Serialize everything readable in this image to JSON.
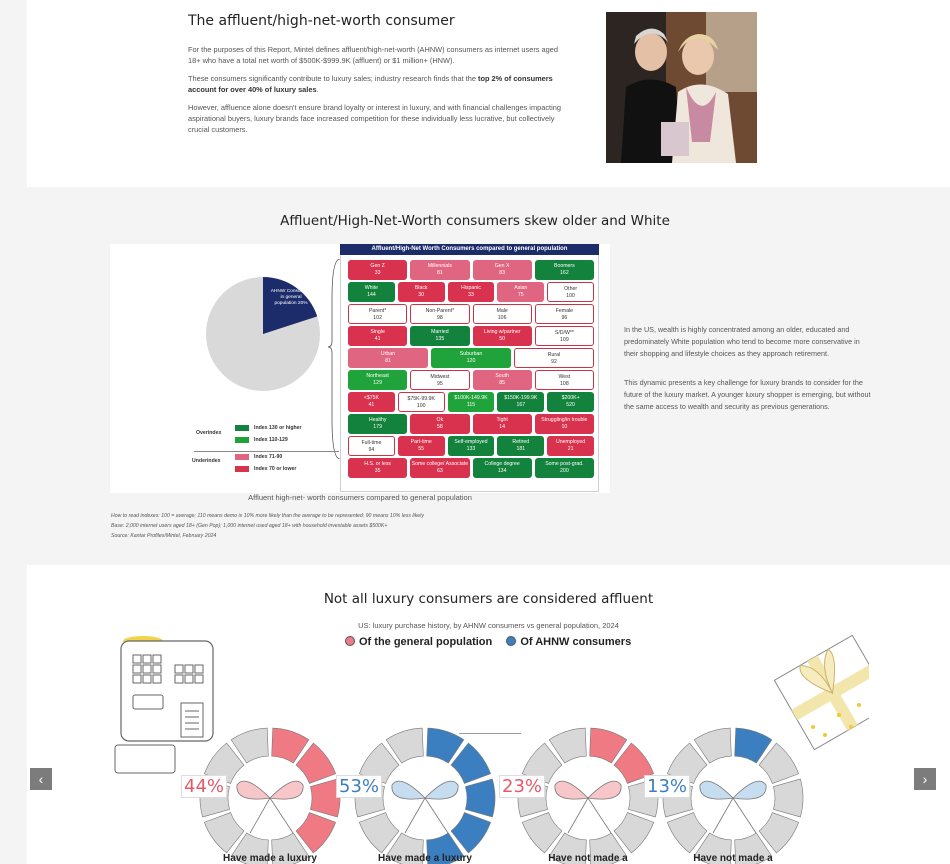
{
  "section1": {
    "title": "The affluent/high-net-worth consumer",
    "p1": "For the purposes of this Report, Mintel defines affluent/high-net-worth (AHNW) consumers as internet users aged 18+ who have a total net worth of $500K-$999.9K (affluent) or $1 million+ (HNW).",
    "p2_pre": "These consumers significantly contribute to luxury sales; industry research finds that the ",
    "p2_bold": "top 2% of consumers account for over 40% of luxury sales",
    "p2_post": ".",
    "p3": "However, affluence alone doesn't ensure brand loyalty or interest in luxury, and with financial challenges impacting aspirational buyers, luxury brands face increased competition for these individually less lucrative, but collectively crucial customers."
  },
  "section2": {
    "title": "Affluent/High-Net-Worth consumers skew older and White",
    "panel_title": "Affluent/High-Net Worth Consumers compared to general population",
    "pie_label": "AHNW Consumers in general population 20%",
    "pie_value": 20,
    "caption": "Affluent high-net- worth consumers compared to general population",
    "note1": "How to read indexes: 100 = average; 110 means demo is 10% more likely than the average to be represented; 90 means 10% less likely",
    "note2": "Base: 2,000 internet users aged 18+ (Gen Pop); 1,000 internet used aged 18+ with household investable assets $500K+",
    "note3": "Source: Kantar Profiles/Mintel, February 2024",
    "p1": "In the US, wealth is highly concentrated among an older, educated and predominately White population who tend to become more conservative in their shopping and lifestyle choices as they approach retirement.",
    "p2": "This dynamic presents a key challenge for luxury brands to consider for the future of the luxury market. A younger luxury shopper is emerging, but without the same access to wealth and security as previous generations.",
    "legend": {
      "over": "Overindex",
      "under": "Underindex",
      "i1": "Index 130 or higher",
      "i2": "Index 110-129",
      "i3": "Index 71-90",
      "i4": "Index 70 or lower"
    },
    "colors": {
      "dg": "#12823c",
      "g": "#21a33b",
      "p": "#e06580",
      "r": "#d9324f",
      "navy": "#1c2c6b"
    },
    "rows": [
      [
        [
          "Gen Z",
          "33",
          "r"
        ],
        [
          "Millennials",
          "81",
          "p"
        ],
        [
          "Gen X",
          "83",
          "p"
        ],
        [
          "Boomers",
          "162",
          "dg"
        ]
      ],
      [
        [
          "White",
          "144",
          "dg"
        ],
        [
          "Black",
          "30",
          "r"
        ],
        [
          "Hispanic",
          "33",
          "r"
        ],
        [
          "Asian",
          "75",
          "p"
        ],
        [
          "Other",
          "100",
          "w"
        ]
      ],
      [
        [
          "Parent*",
          "102",
          "w"
        ],
        [
          "Non-Parent*",
          "98",
          "w"
        ],
        [
          "Male",
          "106",
          "w"
        ],
        [
          "Female",
          "96",
          "w"
        ]
      ],
      [
        [
          "Single",
          "41",
          "r"
        ],
        [
          "Married",
          "135",
          "dg"
        ],
        [
          "Living w/partner",
          "50",
          "r"
        ],
        [
          "S/D/W**",
          "109",
          "w"
        ]
      ],
      [
        [
          "Urban",
          "81",
          "p"
        ],
        [
          "Suburban",
          "120",
          "g"
        ],
        [
          "Rural",
          "92",
          "w"
        ]
      ],
      [
        [
          "Northeast",
          "129",
          "g"
        ],
        [
          "Midwest",
          "95",
          "w"
        ],
        [
          "South",
          "85",
          "p"
        ],
        [
          "West",
          "108",
          "w"
        ]
      ],
      [
        [
          "<$75K",
          "41",
          "r"
        ],
        [
          "$75K-99.9K",
          "100",
          "w"
        ],
        [
          "$100K-149.9K",
          "115",
          "g"
        ],
        [
          "$150K-199.9K",
          "167",
          "dg"
        ],
        [
          "$200K+",
          "520",
          "dg"
        ]
      ],
      [
        [
          "Healthy",
          "179",
          "dg"
        ],
        [
          "Ok",
          "58",
          "r"
        ],
        [
          "Tight",
          "14",
          "r"
        ],
        [
          "Struggling/in trouble",
          "10",
          "r"
        ]
      ],
      [
        [
          "Full-time",
          "94",
          "w"
        ],
        [
          "Part-time",
          "55",
          "r"
        ],
        [
          "Self-employed",
          "133",
          "dg"
        ],
        [
          "Retired",
          "181",
          "dg"
        ],
        [
          "Unemployed",
          "21",
          "r"
        ]
      ],
      [
        [
          "H.S. or less",
          "35",
          "r"
        ],
        [
          "Some college/ Associate",
          "63",
          "r"
        ],
        [
          "College degree",
          "134",
          "dg"
        ],
        [
          "Some post-grad.",
          "200",
          "dg"
        ]
      ]
    ]
  },
  "section3": {
    "title": "Not all luxury consumers are considered affluent",
    "subtitle": "US: luxury purchase history, by AHNW consumers vs general population, 2024",
    "legend_gen": "Of the general population",
    "legend_ahnw": "Of AHNW consumers",
    "color_gen": "#ef7a83",
    "color_ahnw": "#3c7fc0",
    "donuts": [
      {
        "pct": "44%",
        "value": 44,
        "label": "Have made a luxury",
        "series": "gen"
      },
      {
        "pct": "53%",
        "value": 53,
        "label": "Have made a luxury",
        "series": "ahnw"
      },
      {
        "pct": "23%",
        "value": 23,
        "label": "Have not made a",
        "series": "gen"
      },
      {
        "pct": "13%",
        "value": 13,
        "label": "Have not made a",
        "series": "ahnw"
      }
    ]
  },
  "nav": {
    "prev": "‹",
    "next": "›"
  }
}
